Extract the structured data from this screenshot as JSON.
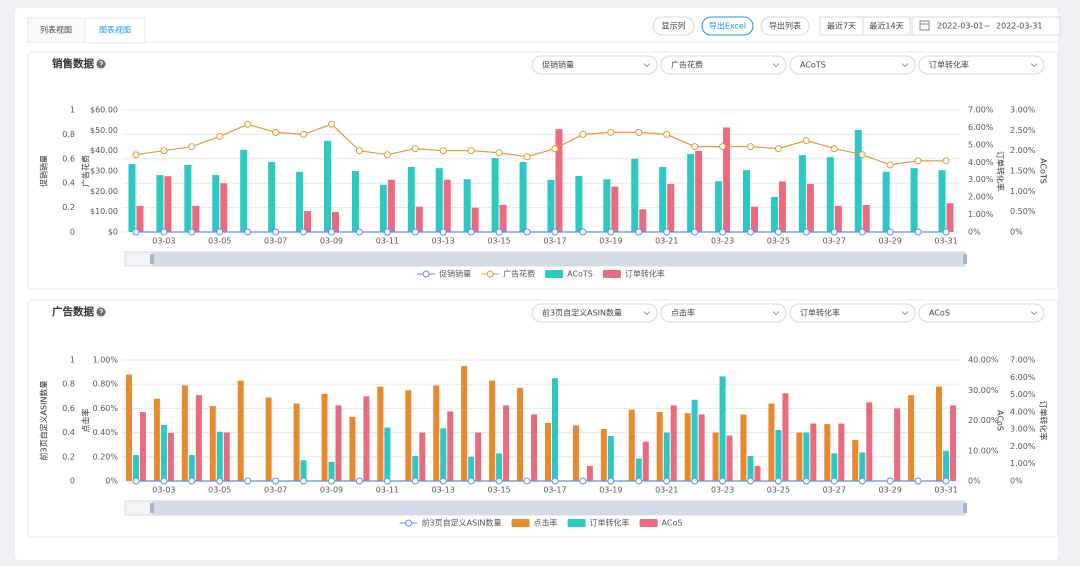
{
  "tabs": [
    "列表视图",
    "图表视图"
  ],
  "buttons": [
    "显示列",
    "导出Excel",
    "导出列表",
    "最近7天",
    "最近14天"
  ],
  "date_range": {
    "start": "2022-03-01",
    "separator": "~",
    "end": "2022-03-31"
  },
  "chart_data": [
    {
      "type": "combo",
      "title": "销售数据",
      "selectors": [
        "促销销量",
        "广告花费",
        "ACoTS",
        "订单转化率"
      ],
      "categories": [
        null,
        "03-03",
        null,
        "03-05",
        null,
        "03-07",
        null,
        "03-09",
        null,
        "03-11",
        null,
        "03-13",
        null,
        "03-15",
        null,
        "03-17",
        null,
        "03-19",
        null,
        "03-21",
        null,
        "03-23",
        null,
        "03-25",
        null,
        "03-27",
        null,
        "03-29",
        null,
        "03-31"
      ],
      "grid": true,
      "y_axes": [
        {
          "title": "促销销量",
          "ylim": [
            0,
            1
          ],
          "yticks": [
            0,
            0.2,
            0.4,
            0.6,
            0.8,
            1
          ]
        },
        {
          "title": "广告花费",
          "ylim": [
            0,
            60
          ],
          "yticks": [
            {
              "value": 0,
              "label": "$0"
            },
            {
              "value": 10,
              "label": "$10.00"
            },
            {
              "value": 20,
              "label": "$20.00"
            },
            {
              "value": 30,
              "label": "$30.00"
            },
            {
              "value": 40,
              "label": "$40.00"
            },
            {
              "value": 50,
              "label": "$50.00"
            },
            {
              "value": 60,
              "label": "$60.00"
            }
          ]
        },
        {
          "title": "订单转化率",
          "ylim": [
            0,
            7
          ],
          "yticks": [
            {
              "value": 0,
              "label": "0%"
            },
            {
              "value": 1,
              "label": "1.00%"
            },
            {
              "value": 2,
              "label": "2.00%"
            },
            {
              "value": 3,
              "label": "3.00%"
            },
            {
              "value": 4,
              "label": "4.00%"
            },
            {
              "value": 5,
              "label": "5.00%"
            },
            {
              "value": 6,
              "label": "6.00%"
            },
            {
              "value": 7,
              "label": "7.00%"
            }
          ]
        },
        {
          "title": "ACoTS",
          "ylim": [
            0,
            3
          ],
          "yticks": [
            {
              "value": 0,
              "label": "0%"
            },
            {
              "value": 0.5,
              "label": "0.50%"
            },
            {
              "value": 1,
              "label": "1.00%"
            },
            {
              "value": 1.5,
              "label": "1.50%"
            },
            {
              "value": 2,
              "label": "2.00%"
            },
            {
              "value": 2.5,
              "label": "2.50%"
            },
            {
              "value": 3,
              "label": "3.00%"
            }
          ]
        }
      ],
      "series": [
        {
          "name": "促销销量",
          "type": "line",
          "axis": 0,
          "color": "#5b8ff9",
          "values": [
            0,
            0,
            0,
            0,
            0,
            0,
            0,
            0,
            0,
            0,
            0,
            0,
            0,
            0,
            0,
            0,
            0,
            0,
            0,
            0,
            0,
            0,
            0,
            0,
            0,
            0,
            0,
            0,
            0,
            0
          ]
        },
        {
          "name": "广告花费",
          "type": "line",
          "axis": 1,
          "color": "#e8963a",
          "values": [
            38,
            40,
            42,
            47,
            53,
            49,
            48,
            53,
            40,
            38,
            41,
            40,
            40,
            39,
            37,
            41,
            48,
            49,
            49,
            48,
            42,
            42,
            42,
            41,
            45,
            41,
            38,
            33,
            35,
            35
          ]
        },
        {
          "name": "ACoTS",
          "type": "bar",
          "axis": 3,
          "color": "#2cc8c3",
          "values": [
            1.67,
            1.4,
            1.65,
            1.4,
            2.02,
            1.72,
            1.48,
            2.24,
            1.5,
            1.16,
            1.6,
            1.57,
            1.3,
            1.82,
            1.72,
            1.28,
            1.38,
            1.3,
            1.8,
            1.6,
            1.92,
            1.25,
            1.52,
            0.86,
            1.89,
            1.84,
            2.51,
            1.48,
            1.57,
            1.52
          ]
        },
        {
          "name": "订单转化率",
          "type": "bar",
          "axis": 2,
          "color": "#eb6a7e",
          "values": [
            1.5,
            3.2,
            1.5,
            2.8,
            0,
            0,
            1.2,
            1.15,
            0,
            3.0,
            1.45,
            3.0,
            1.4,
            1.55,
            0,
            5.9,
            0,
            2.6,
            1.3,
            2.75,
            4.65,
            6.0,
            1.45,
            2.9,
            2.75,
            1.5,
            1.55,
            0,
            0,
            1.65
          ]
        }
      ]
    },
    {
      "type": "combo",
      "title": "广告数据",
      "selectors": [
        "前3页自定义ASIN数量",
        "点击率",
        "订单转化率",
        "ACoS"
      ],
      "categories": [
        null,
        "03-03",
        null,
        "03-05",
        null,
        "03-07",
        null,
        "03-09",
        null,
        "03-11",
        null,
        "03-13",
        null,
        "03-15",
        null,
        "03-17",
        null,
        "03-19",
        null,
        "03-21",
        null,
        "03-23",
        null,
        "03-25",
        null,
        "03-27",
        null,
        "03-29",
        null,
        "03-31"
      ],
      "grid": true,
      "y_axes": [
        {
          "title": "前3页自定义ASIN数量",
          "ylim": [
            0,
            1
          ],
          "yticks": [
            0,
            0.2,
            0.4,
            0.6,
            0.8,
            1
          ]
        },
        {
          "title": "点击率",
          "ylim": [
            0,
            1
          ],
          "yticks": [
            {
              "value": 0,
              "label": "0%"
            },
            {
              "value": 0.2,
              "label": "0.20%"
            },
            {
              "value": 0.4,
              "label": "0.40%"
            },
            {
              "value": 0.6,
              "label": "0.60%"
            },
            {
              "value": 0.8,
              "label": "0.80%"
            },
            {
              "value": 1,
              "label": "1.00%"
            }
          ]
        },
        {
          "title": "ACoS",
          "ylim": [
            0,
            40
          ],
          "yticks": [
            {
              "value": 0,
              "label": "0%"
            },
            {
              "value": 10,
              "label": "10.00%"
            },
            {
              "value": 20,
              "label": "20.00%"
            },
            {
              "value": 30,
              "label": "30.00%"
            },
            {
              "value": 40,
              "label": "40.00%"
            }
          ]
        },
        {
          "title": "订单转化率",
          "ylim": [
            0,
            7
          ],
          "yticks": [
            {
              "value": 0,
              "label": "0%"
            },
            {
              "value": 1,
              "label": "1.00%"
            },
            {
              "value": 2,
              "label": "2.00%"
            },
            {
              "value": 3,
              "label": "3.00%"
            },
            {
              "value": 4,
              "label": "4.00%"
            },
            {
              "value": 5,
              "label": "5.00%"
            },
            {
              "value": 6,
              "label": "6.00%"
            },
            {
              "value": 7,
              "label": "7.00%"
            }
          ]
        }
      ],
      "series": [
        {
          "name": "前3页自定义ASIN数量",
          "type": "line",
          "axis": 0,
          "color": "#5b8ff9",
          "values": [
            0,
            0,
            0,
            0,
            0,
            0,
            0,
            0,
            0,
            0,
            0,
            0,
            0,
            0,
            0,
            0,
            0,
            0,
            0,
            0,
            0,
            0,
            0,
            0,
            0,
            0,
            0,
            0,
            0,
            0
          ]
        },
        {
          "name": "点击率",
          "type": "bar",
          "axis": 1,
          "color": "#e8892d",
          "values": [
            0.88,
            0.68,
            0.79,
            0.62,
            0.83,
            0.69,
            0.64,
            0.72,
            0.53,
            0.78,
            0.75,
            0.79,
            0.95,
            0.83,
            0.77,
            0.48,
            0.46,
            0.43,
            0.59,
            0.57,
            0.56,
            0.4,
            0.55,
            0.64,
            0.4,
            0.47,
            0.34,
            0,
            0.71,
            0.78
          ]
        },
        {
          "name": "订单转化率",
          "type": "bar",
          "axis": 3,
          "color": "#2cc8c3",
          "values": [
            1.5,
            3.25,
            1.5,
            2.85,
            0,
            0,
            1.2,
            1.1,
            0,
            3.1,
            1.45,
            3.05,
            1.4,
            1.6,
            0,
            5.95,
            0,
            2.6,
            1.3,
            2.8,
            4.7,
            6.05,
            1.45,
            2.95,
            2.8,
            1.6,
            1.65,
            0,
            0,
            1.75
          ]
        },
        {
          "name": "ACoS",
          "type": "bar",
          "axis": 2,
          "color": "#eb6a7e",
          "values": [
            22.8,
            15.9,
            28.4,
            16,
            0,
            0,
            0,
            25,
            28,
            0,
            16,
            23,
            16,
            25,
            22,
            0,
            5,
            0,
            13,
            25,
            22,
            15,
            5,
            29,
            19,
            19,
            26,
            24,
            0,
            25
          ]
        }
      ]
    }
  ]
}
